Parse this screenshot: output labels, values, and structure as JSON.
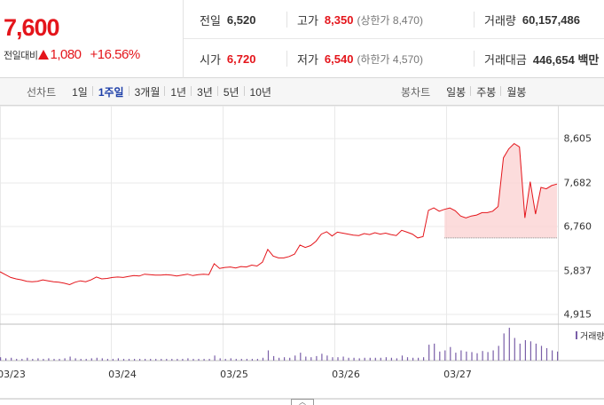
{
  "summary": {
    "current_price": "7,600",
    "change_label": "전일대비",
    "change_direction": "up",
    "change_amount": "1,080",
    "change_rate": "+16.56%",
    "stats": {
      "prev_close": {
        "label": "전일",
        "value": "6,520"
      },
      "open": {
        "label": "시가",
        "value": "6,720"
      },
      "high": {
        "label": "고가",
        "value": "8,350",
        "sub": "(상한가 8,470)"
      },
      "low": {
        "label": "저가",
        "value": "6,540",
        "sub": "(하한가 4,570)"
      },
      "volume": {
        "label": "거래량",
        "value": "60,157,486"
      },
      "amount": {
        "label": "거래대금",
        "value": "446,654 백만"
      }
    }
  },
  "toolbar": {
    "line_title": "선차트",
    "line_periods": [
      "1일",
      "1주일",
      "3개월",
      "1년",
      "3년",
      "5년",
      "10년"
    ],
    "active_period": "1주일",
    "candle_title": "봉차트",
    "candle_periods": [
      "일봉",
      "주봉",
      "월봉"
    ]
  },
  "colors": {
    "up": "#e4151b",
    "active_tab": "#1d3fa8",
    "volume_bar": "#7a5fa8",
    "area_fill": "#fbd3d3"
  },
  "volume_legend": "거래량",
  "chart_data": {
    "type": "line",
    "y_ticks": [
      "8,605",
      "7,682",
      "6,760",
      "5,837",
      "4,915"
    ],
    "ylim": [
      4915,
      8605
    ],
    "x_ticks": [
      "03/23",
      "03/24",
      "03/25",
      "03/26",
      "03/27"
    ],
    "prev_close_reference": 6520,
    "grid": true,
    "series": [
      {
        "values": [
          5810,
          5750,
          5690,
          5660,
          5640,
          5610,
          5600,
          5610,
          5640,
          5620,
          5600,
          5590,
          5570,
          5540,
          5590,
          5620,
          5600,
          5640,
          5700,
          5660,
          5670,
          5690,
          5700,
          5690,
          5710,
          5730,
          5720,
          5760,
          5750,
          5740,
          5740,
          5750,
          5740,
          5720,
          5740,
          5760,
          5730,
          5750,
          5760,
          5750,
          5980,
          5880,
          5900,
          5910,
          5890,
          5920,
          5910,
          5950,
          5930,
          6010,
          6280,
          6140,
          6100,
          6100,
          6130,
          6180,
          6370,
          6320,
          6360,
          6450,
          6600,
          6650,
          6560,
          6640,
          6620,
          6600,
          6580,
          6570,
          6610,
          6590,
          6630,
          6600,
          6620,
          6590,
          6570,
          6680,
          6640,
          6600,
          6520,
          6550,
          7100,
          7150,
          7080,
          7120,
          7150,
          7090,
          6980,
          6940,
          6980,
          7000,
          7050,
          7050,
          7080,
          7180,
          8200,
          8390,
          8500,
          8430,
          6940,
          7700,
          7020,
          7580,
          7550,
          7620,
          7650
        ]
      }
    ],
    "volume": [
      6,
      4,
      5,
      3,
      3,
      5,
      3,
      4,
      3,
      4,
      3,
      3,
      4,
      7,
      4,
      3,
      3,
      4,
      5,
      4,
      3,
      3,
      4,
      3,
      3,
      3,
      3,
      3,
      3,
      3,
      3,
      3,
      3,
      3,
      3,
      4,
      3,
      3,
      3,
      3,
      9,
      4,
      3,
      4,
      3,
      3,
      3,
      3,
      3,
      5,
      18,
      8,
      5,
      6,
      5,
      9,
      14,
      7,
      6,
      8,
      12,
      9,
      6,
      6,
      7,
      5,
      5,
      4,
      5,
      5,
      5,
      5,
      6,
      5,
      4,
      9,
      6,
      5,
      5,
      6,
      28,
      30,
      16,
      18,
      24,
      14,
      18,
      16,
      15,
      13,
      17,
      15,
      18,
      26,
      48,
      58,
      40,
      30,
      36,
      34,
      30,
      26,
      22,
      18,
      16
    ]
  }
}
